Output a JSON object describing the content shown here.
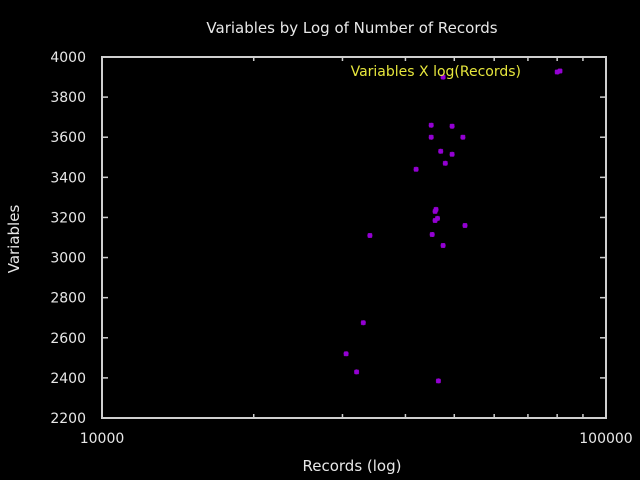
{
  "colors": {
    "background": "#000000",
    "axis": "#cfcfcf",
    "text": "#e8e8e8",
    "points": "#9400d3",
    "legend_text": "#e6e63c"
  },
  "chart_data": {
    "type": "scatter",
    "title": "Variables by Log of Number of Records",
    "xlabel": "Records (log)",
    "ylabel": "Variables",
    "x_scale": "log",
    "xlim": [
      10000,
      100000
    ],
    "ylim": [
      2200,
      4000
    ],
    "x_tick_labels": [
      {
        "value": 10000,
        "label": "10000"
      },
      {
        "value": 100000,
        "label": "100000"
      }
    ],
    "x_minor_ticks": [
      20000,
      30000,
      40000,
      50000,
      60000,
      70000,
      80000,
      90000
    ],
    "y_ticks": [
      2200,
      2400,
      2600,
      2800,
      3000,
      3200,
      3400,
      3600,
      3800,
      4000
    ],
    "y_tick_labels": [
      "2200",
      "2400",
      "2600",
      "2800",
      "3000",
      "3200",
      "3400",
      "3600",
      "3800",
      "4000"
    ],
    "grid": false,
    "legend_position": "top-right",
    "series": [
      {
        "name": "Variables X log(Records)",
        "points": [
          {
            "x": 80000,
            "y": 3925
          },
          {
            "x": 47500,
            "y": 3900
          },
          {
            "x": 45000,
            "y": 3660
          },
          {
            "x": 49500,
            "y": 3655
          },
          {
            "x": 45000,
            "y": 3600
          },
          {
            "x": 52000,
            "y": 3600
          },
          {
            "x": 47000,
            "y": 3530
          },
          {
            "x": 49500,
            "y": 3515
          },
          {
            "x": 48000,
            "y": 3470
          },
          {
            "x": 42000,
            "y": 3440
          },
          {
            "x": 46000,
            "y": 3240
          },
          {
            "x": 45800,
            "y": 3230
          },
          {
            "x": 46300,
            "y": 3195
          },
          {
            "x": 45800,
            "y": 3185
          },
          {
            "x": 52500,
            "y": 3160
          },
          {
            "x": 45200,
            "y": 3115
          },
          {
            "x": 34000,
            "y": 3110
          },
          {
            "x": 47500,
            "y": 3060
          },
          {
            "x": 33000,
            "y": 2675
          },
          {
            "x": 30500,
            "y": 2520
          },
          {
            "x": 32000,
            "y": 2430
          },
          {
            "x": 46500,
            "y": 2385
          }
        ]
      }
    ]
  }
}
